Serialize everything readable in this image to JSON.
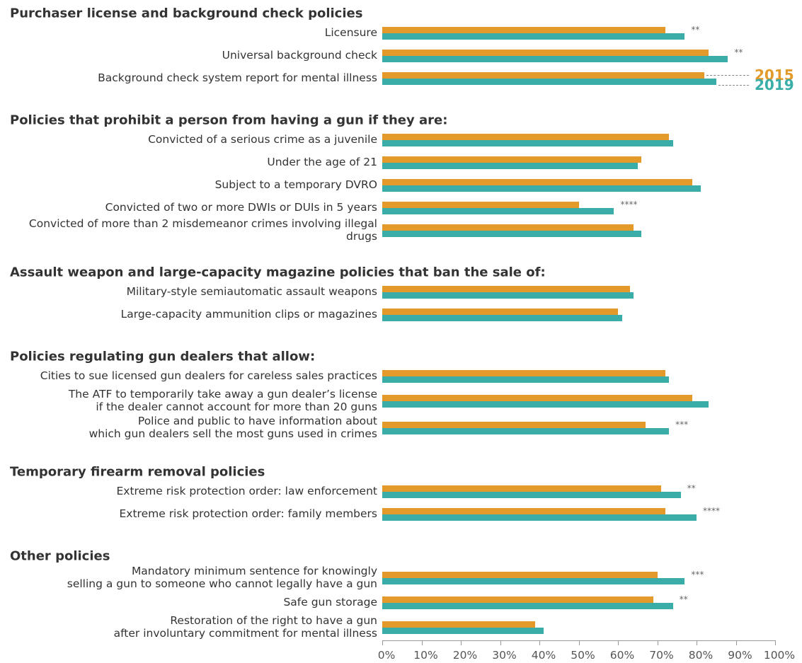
{
  "chart_data": {
    "type": "bar",
    "orientation": "horizontal",
    "legend": [
      {
        "name": "2015",
        "color": "#e39a2b"
      },
      {
        "name": "2019",
        "color": "#3aada8"
      }
    ],
    "xlim": [
      0,
      100
    ],
    "xticks": [
      {
        "value": 0,
        "label": "0%"
      },
      {
        "value": 10,
        "label": "10%"
      },
      {
        "value": 20,
        "label": "20%"
      },
      {
        "value": 30,
        "label": "30%"
      },
      {
        "value": 40,
        "label": "40%"
      },
      {
        "value": 50,
        "label": "50%"
      },
      {
        "value": 60,
        "label": "60%"
      },
      {
        "value": 70,
        "label": "70%"
      },
      {
        "value": 80,
        "label": "80%"
      },
      {
        "value": 90,
        "label": "90%"
      },
      {
        "value": 100,
        "label": "100%"
      }
    ],
    "groups": [
      {
        "title": "Purchaser license and background check policies",
        "categories": [
          "Licensure",
          "Universal background check",
          "Background check system report for mental illness"
        ],
        "series": [
          {
            "values": [
              72,
              83,
              82
            ]
          },
          {
            "values": [
              77,
              88,
              85
            ]
          }
        ],
        "annotations": [
          "**",
          "**",
          null
        ]
      },
      {
        "title": "Policies that prohibit a person from having a gun if they are:",
        "categories": [
          "Convicted of a serious crime as a juvenile",
          "Under the age of 21",
          "Subject to a temporary DVRO",
          "Convicted of two or more DWIs or DUIs in 5 years",
          "Convicted of more than 2 misdemeanor crimes involving illegal drugs"
        ],
        "series": [
          {
            "values": [
              73,
              66,
              79,
              50,
              64
            ]
          },
          {
            "values": [
              74,
              65,
              81,
              59,
              66
            ]
          }
        ],
        "annotations": [
          null,
          null,
          null,
          "****",
          null
        ]
      },
      {
        "title": "Assault weapon and large-capacity magazine policies that ban the sale of:",
        "categories": [
          "Military-style semiautomatic assault weapons",
          "Large-capacity ammunition clips or magazines"
        ],
        "series": [
          {
            "values": [
              63,
              60
            ]
          },
          {
            "values": [
              64,
              61
            ]
          }
        ],
        "annotations": [
          null,
          null
        ]
      },
      {
        "title": "Policies regulating gun dealers that allow:",
        "categories": [
          "Cities to sue licensed gun dealers for careless sales practices",
          "The ATF to temporarily take away a gun dealer’s license\nif the dealer cannot account for more than 20 guns",
          "Police and public to have information about\nwhich gun dealers sell the most guns used in crimes"
        ],
        "series": [
          {
            "values": [
              72,
              79,
              67
            ]
          },
          {
            "values": [
              73,
              83,
              73
            ]
          }
        ],
        "annotations": [
          null,
          null,
          "***"
        ]
      },
      {
        "title": "Temporary firearm removal policies",
        "categories": [
          "Extreme risk protection order: law enforcement",
          "Extreme risk protection order: family members"
        ],
        "series": [
          {
            "values": [
              71,
              72
            ]
          },
          {
            "values": [
              76,
              80
            ]
          }
        ],
        "annotations": [
          "**",
          "****"
        ]
      },
      {
        "title": "Other policies",
        "categories": [
          "Mandatory minimum sentence for knowingly\nselling a gun to someone who cannot legally have a gun",
          "Safe gun storage",
          "Restoration of the right to have a gun\nafter involuntary commitment for mental illness"
        ],
        "series": [
          {
            "values": [
              70,
              69,
              39
            ]
          },
          {
            "values": [
              77,
              74,
              41
            ]
          }
        ],
        "annotations": [
          "***",
          "**",
          null
        ]
      }
    ]
  }
}
